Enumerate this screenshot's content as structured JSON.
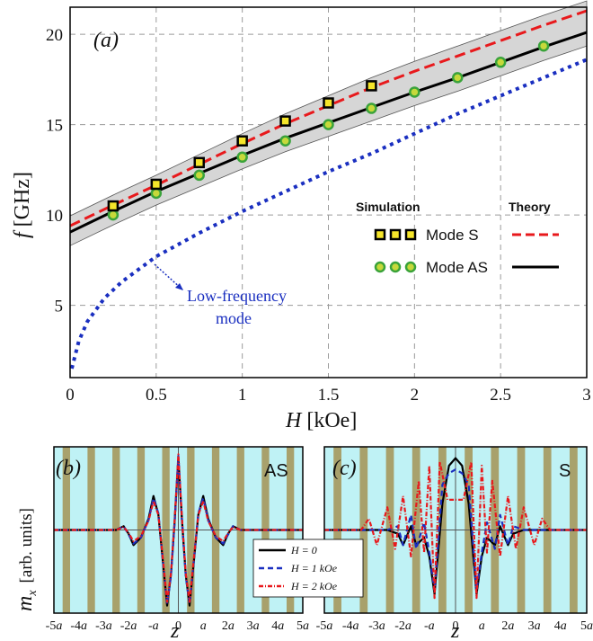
{
  "chart_data": [
    {
      "type": "line",
      "panel_label": "(a)",
      "xlabel_var": "H",
      "xlabel_unit": "[kOe]",
      "ylabel_var": "f",
      "ylabel_unit": "[GHz]",
      "xlim": [
        0,
        3
      ],
      "ylim": [
        1,
        21.5
      ],
      "xticks": [
        "0",
        "0.5",
        "1",
        "1.5",
        "2",
        "2.5",
        "3"
      ],
      "yticks": [
        "5",
        "10",
        "15",
        "20"
      ],
      "grid": true,
      "legend": {
        "col1_title": "Simulation",
        "col2_title": "Theory",
        "entries": [
          "Mode S",
          "Mode AS"
        ]
      },
      "annotation": [
        "Low-frequency",
        "mode"
      ],
      "colors": {
        "mode_s": "#e8191c",
        "mode_as": "#000000",
        "low": "#1a2fc0",
        "band": "#d4d4d4",
        "sq_fill": "#f5e52a",
        "circ_fill": "#c6d93a",
        "circ_edge": "#3aa33a"
      },
      "series": [
        {
          "name": "Mode S",
          "kind": "theory",
          "x": [
            0,
            0.25,
            0.5,
            0.75,
            1,
            1.25,
            1.5,
            1.75,
            2,
            2.25,
            2.5,
            2.75,
            3
          ],
          "y": [
            9.4,
            10.55,
            11.65,
            12.8,
            13.95,
            15.05,
            16.05,
            17.05,
            17.95,
            18.8,
            19.65,
            20.5,
            21.3
          ]
        },
        {
          "name": "Mode AS",
          "kind": "theory",
          "x": [
            0,
            0.25,
            0.5,
            0.75,
            1,
            1.25,
            1.5,
            1.75,
            2,
            2.25,
            2.5,
            2.75,
            3
          ],
          "y": [
            9.05,
            10.2,
            11.3,
            12.3,
            13.3,
            14.25,
            15.1,
            15.95,
            16.8,
            17.6,
            18.45,
            19.3,
            20.1
          ]
        },
        {
          "name": "Mode S",
          "kind": "simulation",
          "x": [
            0.25,
            0.5,
            0.75,
            1,
            1.25,
            1.5,
            1.75
          ],
          "y": [
            10.5,
            11.7,
            12.9,
            14.1,
            15.2,
            16.2,
            17.15
          ]
        },
        {
          "name": "Mode AS",
          "kind": "simulation",
          "x": [
            0.25,
            0.5,
            0.75,
            1,
            1.25,
            1.5,
            1.75,
            2,
            2.25,
            2.5,
            2.75
          ],
          "y": [
            10.0,
            11.2,
            12.2,
            13.2,
            14.1,
            15.0,
            15.9,
            16.8,
            17.6,
            18.45,
            19.35
          ]
        },
        {
          "name": "Low-frequency mode",
          "kind": "theory",
          "x": [
            0.01,
            0.05,
            0.1,
            0.2,
            0.3,
            0.5,
            0.75,
            1,
            1.25,
            1.5,
            1.75,
            2,
            2.25,
            2.5,
            2.75,
            3
          ],
          "y": [
            1.5,
            3.0,
            4.1,
            5.4,
            6.3,
            7.7,
            9.0,
            10.2,
            11.3,
            12.4,
            13.4,
            14.5,
            15.6,
            16.6,
            17.6,
            18.6
          ]
        }
      ]
    },
    {
      "type": "line",
      "panel_label": "(b)",
      "mode_label": "AS",
      "ylabel": "m",
      "ylabel_sub": "x",
      "ylabel_unit": "[arb. units]",
      "xlabel": "z",
      "xticks": [
        "-5a",
        "-4a",
        "-3a",
        "-2a",
        "-a",
        "0",
        "a",
        "2a",
        "3a",
        "4a",
        "5a"
      ],
      "xlim": [
        -5,
        5
      ],
      "ylim": [
        -1.1,
        1.1
      ],
      "series": [
        {
          "name": "H = 0",
          "x": [
            -5,
            -2.5,
            -2.2,
            -2.0,
            -1.8,
            -1.5,
            -1.2,
            -1.0,
            -0.8,
            -0.6,
            -0.45,
            -0.3,
            -0.15,
            0,
            0.15,
            0.3,
            0.45,
            0.6,
            0.8,
            1.0,
            1.2,
            1.5,
            1.8,
            2.0,
            2.2,
            2.5,
            5
          ],
          "y": [
            0,
            0,
            0.05,
            -0.05,
            -0.2,
            -0.1,
            0.15,
            0.45,
            0.2,
            -0.5,
            -1.0,
            -0.6,
            0.1,
            0.95,
            0.1,
            -0.6,
            -1.0,
            -0.5,
            0.2,
            0.45,
            0.15,
            -0.1,
            -0.2,
            -0.05,
            0.05,
            0,
            0
          ]
        },
        {
          "name": "H = 1 kOe",
          "x": [
            -5,
            -2.5,
            -2.2,
            -2.0,
            -1.8,
            -1.5,
            -1.2,
            -1.0,
            -0.8,
            -0.6,
            -0.45,
            -0.3,
            -0.15,
            0,
            0.15,
            0.3,
            0.45,
            0.6,
            0.8,
            1.0,
            1.2,
            1.5,
            1.8,
            2.0,
            2.2,
            2.5,
            5
          ],
          "y": [
            0,
            0,
            0.05,
            -0.06,
            -0.18,
            -0.1,
            0.13,
            0.42,
            0.22,
            -0.48,
            -0.98,
            -0.62,
            0.08,
            0.98,
            0.08,
            -0.62,
            -0.98,
            -0.48,
            0.22,
            0.42,
            0.13,
            -0.1,
            -0.18,
            -0.06,
            0.05,
            0,
            0
          ]
        },
        {
          "name": "H = 2 kOe",
          "x": [
            -5,
            -2.5,
            -2.2,
            -2.0,
            -1.8,
            -1.5,
            -1.2,
            -1.0,
            -0.8,
            -0.6,
            -0.45,
            -0.3,
            -0.15,
            0,
            0.15,
            0.3,
            0.45,
            0.6,
            0.8,
            1.0,
            1.2,
            1.5,
            1.8,
            2.0,
            2.2,
            2.5,
            5
          ],
          "y": [
            0,
            0,
            0.04,
            -0.04,
            -0.15,
            -0.08,
            0.12,
            0.38,
            0.2,
            -0.45,
            -0.95,
            -0.58,
            0.12,
            1.0,
            0.12,
            -0.58,
            -0.95,
            -0.45,
            0.2,
            0.38,
            0.12,
            -0.08,
            -0.15,
            -0.04,
            0.04,
            0,
            0
          ]
        }
      ],
      "legend": [
        "H = 0",
        "H = 1 kOe",
        "H = 2 kOe"
      ]
    },
    {
      "type": "line",
      "panel_label": "(c)",
      "mode_label": "S",
      "xlabel": "z",
      "xticks": [
        "-5a",
        "-4a",
        "-3a",
        "-2a",
        "-a",
        "0",
        "a",
        "2a",
        "3a",
        "4a",
        "5a"
      ],
      "xlim": [
        -5,
        5
      ],
      "ylim": [
        -1.1,
        1.1
      ],
      "series": [
        {
          "name": "H = 0",
          "x": [
            -5,
            -2.6,
            -2.2,
            -2.0,
            -1.7,
            -1.5,
            -1.2,
            -1.0,
            -0.8,
            -0.5,
            -0.25,
            0,
            0.25,
            0.5,
            0.8,
            1.0,
            1.2,
            1.5,
            1.7,
            2.0,
            2.2,
            2.6,
            5
          ],
          "y": [
            0,
            0,
            -0.05,
            -0.2,
            0.05,
            -0.2,
            -0.1,
            -0.35,
            -0.85,
            0.35,
            0.85,
            0.95,
            0.85,
            0.35,
            -0.85,
            -0.35,
            -0.1,
            -0.2,
            0.05,
            -0.2,
            -0.05,
            0,
            0
          ]
        },
        {
          "name": "H = 1 kOe",
          "x": [
            -5,
            -2.6,
            -2.2,
            -2.0,
            -1.7,
            -1.5,
            -1.2,
            -1.0,
            -0.8,
            -0.5,
            -0.25,
            0,
            0.25,
            0.5,
            0.8,
            1.0,
            1.2,
            1.5,
            1.7,
            2.0,
            2.2,
            2.6,
            5
          ],
          "y": [
            0,
            0,
            0.05,
            -0.2,
            0.2,
            -0.25,
            0.1,
            -0.3,
            -0.8,
            0.6,
            0.75,
            0.8,
            0.75,
            0.6,
            -0.8,
            -0.3,
            0.1,
            -0.25,
            0.2,
            -0.2,
            0.05,
            0,
            0
          ]
        },
        {
          "name": "H = 2 kOe",
          "x": [
            -5,
            -3.6,
            -3.3,
            -3.0,
            -2.6,
            -2.3,
            -2.0,
            -1.7,
            -1.4,
            -1.2,
            -1.0,
            -0.8,
            -0.6,
            -0.3,
            0,
            0.3,
            0.6,
            0.8,
            1.0,
            1.2,
            1.4,
            1.7,
            2.0,
            2.3,
            2.6,
            3.0,
            3.3,
            3.6,
            5
          ],
          "y": [
            0,
            0,
            0.15,
            -0.2,
            0.3,
            -0.25,
            0.45,
            -0.35,
            0.65,
            -0.3,
            0.85,
            -0.9,
            0.9,
            0.4,
            0.4,
            0.4,
            0.9,
            -0.9,
            0.85,
            -0.3,
            0.65,
            -0.35,
            0.45,
            -0.25,
            0.3,
            -0.2,
            0.15,
            0,
            0
          ]
        }
      ]
    }
  ]
}
